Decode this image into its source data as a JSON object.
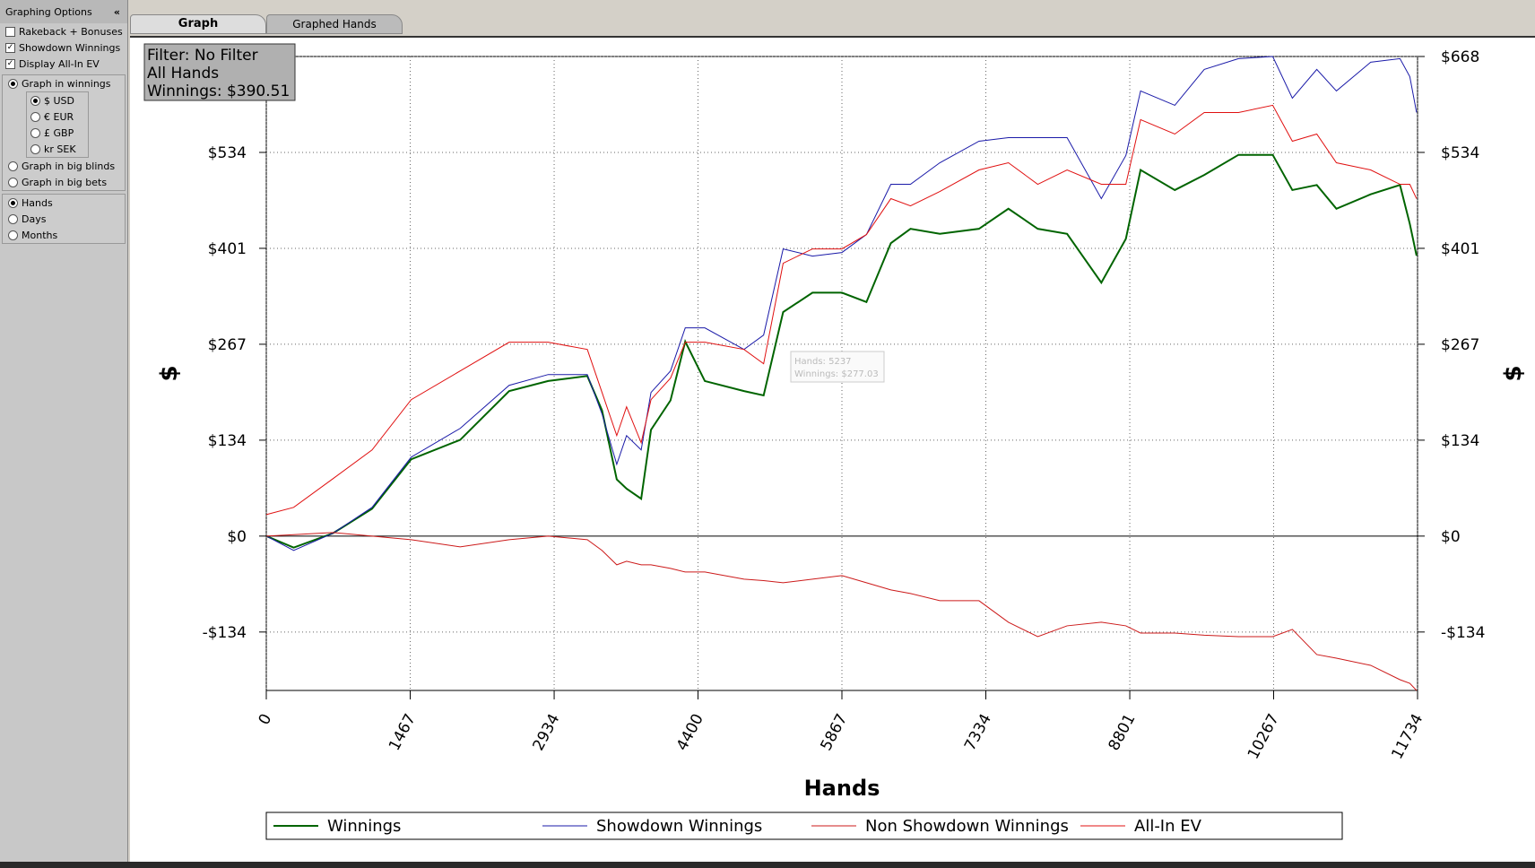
{
  "app": {
    "tabs": [
      "Graph",
      "Graphed Hands"
    ],
    "sidebar": {
      "title": "Graphing Options",
      "collapse": "«",
      "checkboxes": [
        {
          "label": "Rakeback + Bonuses",
          "checked": false
        },
        {
          "label": "Showdown Winnings",
          "checked": true
        },
        {
          "label": "Display All-In EV",
          "checked": true
        }
      ],
      "units": [
        {
          "label": "Graph in winnings",
          "checked": true
        },
        {
          "label": "Graph in big blinds",
          "checked": false
        },
        {
          "label": "Graph in big bets",
          "checked": false
        }
      ],
      "currencies": [
        {
          "label": "$ USD",
          "checked": true
        },
        {
          "label": "€ EUR",
          "checked": false
        },
        {
          "label": "£ GBP",
          "checked": false
        },
        {
          "label": "kr SEK",
          "checked": false
        }
      ],
      "periods": [
        {
          "label": "Hands",
          "checked": true
        },
        {
          "label": "Days",
          "checked": false
        },
        {
          "label": "Months",
          "checked": false
        }
      ]
    },
    "filter_box": [
      "Filter: No Filter",
      "All Hands",
      "Winnings: $390.51"
    ],
    "tooltip": [
      "Hands: 5237",
      "Winnings: $277.03"
    ]
  },
  "chart_data": {
    "type": "line",
    "x_label": "Hands",
    "y_label": "$",
    "grid": true,
    "legend": "bottom",
    "xlim": [
      0,
      11734
    ],
    "xticks": [
      0,
      1467,
      2934,
      4400,
      5867,
      7334,
      8801,
      10267,
      11734
    ],
    "ylim": [
      -215,
      668
    ],
    "yticks": [
      {
        "value": -133.6,
        "label": "-$134"
      },
      {
        "value": 0,
        "label": "$0"
      },
      {
        "value": 133.6,
        "label": "$134"
      },
      {
        "value": 267.2,
        "label": "$267"
      },
      {
        "value": 400.8,
        "label": "$401"
      },
      {
        "value": 534.4,
        "label": "$534"
      },
      {
        "value": 668,
        "label": "$668"
      }
    ],
    "x": [
      0,
      279,
      680,
      1078,
      1477,
      1976,
      2475,
      2873,
      3272,
      3422,
      3572,
      3672,
      3821,
      3921,
      4120,
      4270,
      4470,
      4869,
      5069,
      5268,
      5567,
      5867,
      6117,
      6366,
      6566,
      6865,
      7264,
      7564,
      7863,
      8162,
      8511,
      8761,
      8911,
      9260,
      9560,
      9909,
      10258,
      10458,
      10707,
      10907,
      11256,
      11555,
      11655,
      11724
    ],
    "series": [
      {
        "name": "Winnings",
        "color": "#006400",
        "width": 2,
        "values": [
          0,
          -16,
          4,
          38,
          107,
          134,
          202,
          216,
          223,
          175,
          79,
          66,
          52,
          148,
          189,
          271,
          216,
          202,
          196,
          312,
          339,
          339,
          326,
          408,
          428,
          421,
          428,
          456,
          428,
          421,
          353,
          414,
          510,
          482,
          503,
          531,
          531,
          482,
          489,
          456,
          476,
          489,
          435,
          390.51
        ]
      },
      {
        "name": "Showdown Winnings",
        "color": "#1a1aa8",
        "width": 1,
        "values": [
          0,
          -20,
          4,
          40,
          110,
          150,
          210,
          225,
          225,
          170,
          100,
          140,
          120,
          200,
          230,
          290,
          290,
          260,
          280,
          400,
          390,
          395,
          420,
          490,
          490,
          520,
          550,
          555,
          555,
          555,
          470,
          530,
          620,
          600,
          650,
          665,
          668,
          610,
          650,
          620,
          660,
          665,
          640,
          590
        ]
      },
      {
        "name": "Non Showdown Winnings",
        "color": "#cc1a1a",
        "width": 1,
        "values": [
          0,
          2,
          5,
          0,
          -5,
          -15,
          -5,
          0,
          -5,
          -20,
          -40,
          -35,
          -40,
          -40,
          -45,
          -50,
          -50,
          -60,
          -62,
          -65,
          -60,
          -55,
          -65,
          -75,
          -80,
          -90,
          -90,
          -120,
          -140,
          -125,
          -120,
          -125,
          -135,
          -135,
          -138,
          -140,
          -140,
          -130,
          -165,
          -170,
          -180,
          -200,
          -205,
          -215
        ]
      },
      {
        "name": "All-In EV",
        "color": "#e01010",
        "width": 1,
        "values": [
          30,
          40,
          80,
          120,
          190,
          230,
          270,
          270,
          260,
          200,
          140,
          180,
          130,
          190,
          220,
          270,
          270,
          260,
          240,
          380,
          400,
          400,
          420,
          470,
          460,
          480,
          510,
          520,
          490,
          510,
          490,
          490,
          580,
          560,
          590,
          590,
          600,
          550,
          560,
          520,
          510,
          490,
          490,
          470
        ]
      }
    ]
  }
}
